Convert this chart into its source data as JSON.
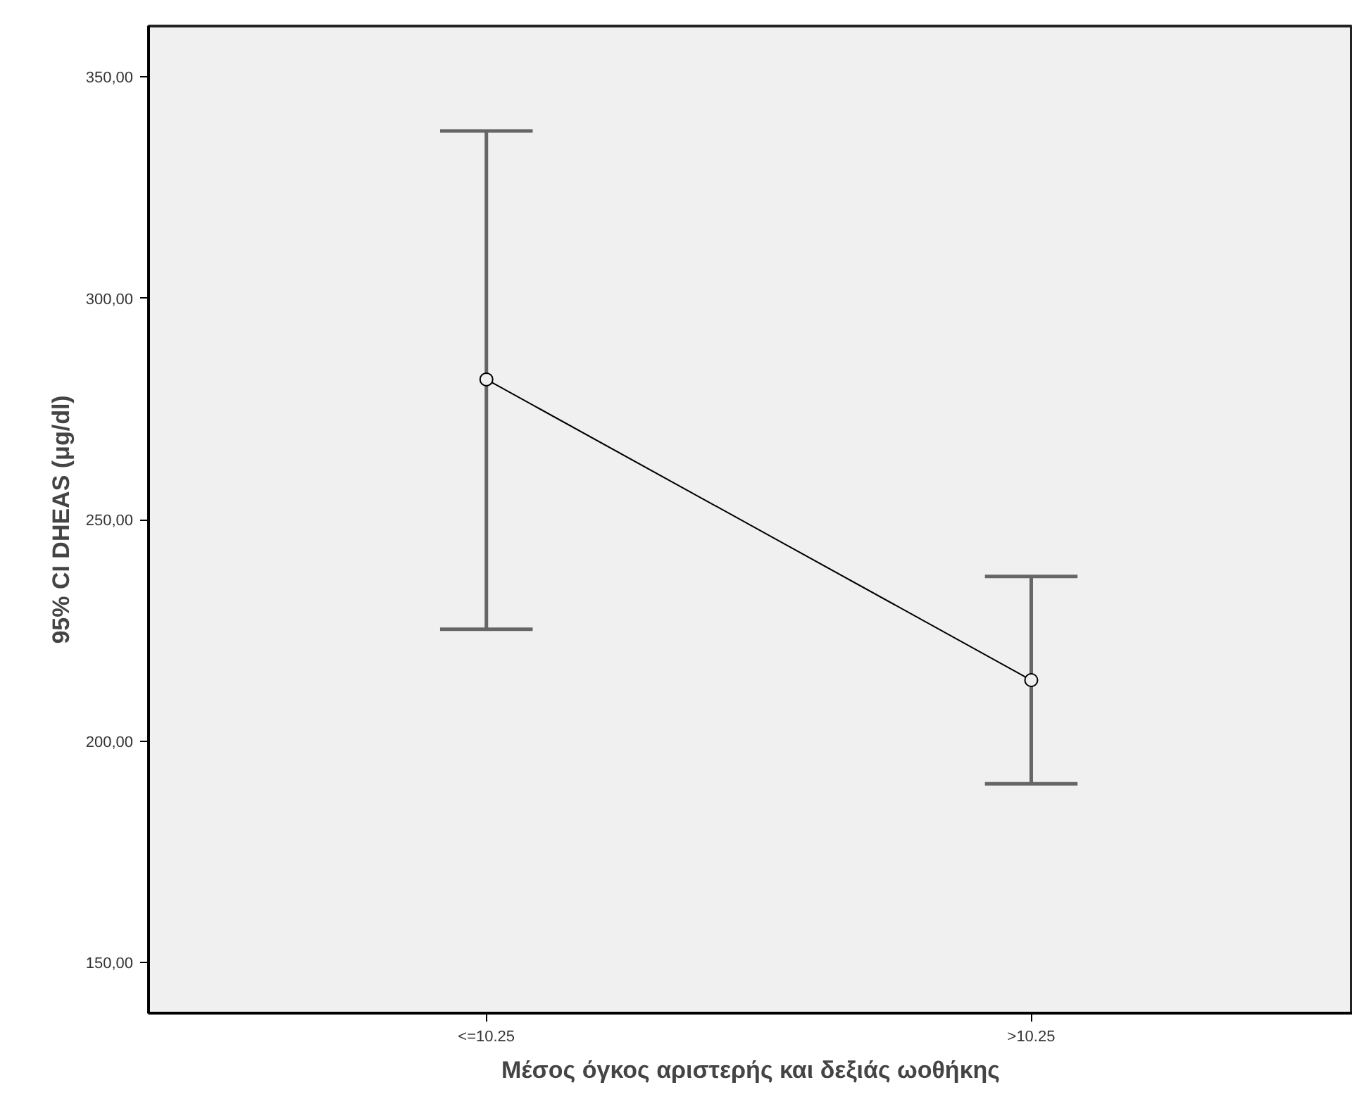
{
  "chart_data": {
    "type": "line",
    "xlabel": "Μέσος όγκος αριστερής και δεξιάς ωοθήκης",
    "ylabel": "95% CI DHEAS (μg/dl)",
    "categories": [
      "<=10.25",
      ">10.25"
    ],
    "series": [
      {
        "color": "#000000",
        "values": [
          281.7,
          213.8
        ],
        "errors": [
          [
            225.3,
            337.8
          ],
          [
            190.4,
            237.2
          ]
        ]
      }
    ],
    "ylim": [
      138.6,
      361.5
    ],
    "yticks": [
      {
        "value": 150,
        "label": "150,00"
      },
      {
        "value": 200,
        "label": "200,00"
      },
      {
        "value": 250,
        "label": "250,00"
      },
      {
        "value": 300,
        "label": "300,00"
      },
      {
        "value": 350,
        "label": "350,00"
      }
    ],
    "marker": "circle",
    "grid": false
  }
}
